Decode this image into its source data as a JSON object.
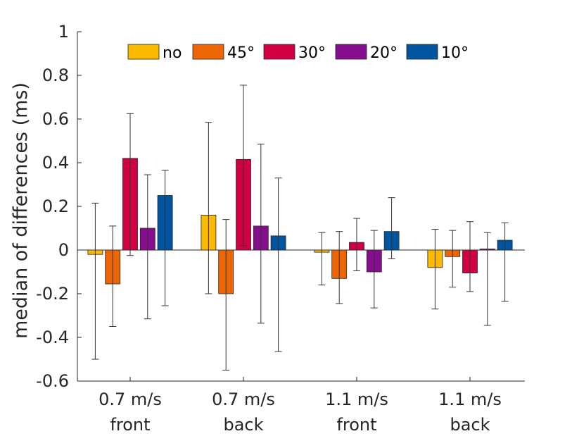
{
  "chart_data": {
    "type": "bar",
    "title": "",
    "xlabel": "",
    "ylabel": "median of differences (ms)",
    "ylim": [
      -0.6,
      1
    ],
    "yticks": [
      -0.6,
      -0.4,
      -0.2,
      0,
      0.2,
      0.4,
      0.6,
      0.8,
      1
    ],
    "ytick_labels": [
      "-0.6",
      "-0.4",
      "-0.2",
      "0",
      "0.2",
      "0.4",
      "0.6",
      "0.8",
      "1"
    ],
    "categories": [
      {
        "line1": "0.7 m/s",
        "line2": "front"
      },
      {
        "line1": "0.7 m/s",
        "line2": "back"
      },
      {
        "line1": "1.1 m/s",
        "line2": "front"
      },
      {
        "line1": "1.1 m/s",
        "line2": "back"
      }
    ],
    "legend_position": "top",
    "series": [
      {
        "name": "no",
        "color": "#FBB900",
        "values": [
          -0.02,
          0.16,
          -0.01,
          -0.08
        ],
        "err_low": [
          -0.5,
          -0.2,
          -0.16,
          -0.27
        ],
        "err_high": [
          0.215,
          0.585,
          0.08,
          0.095
        ]
      },
      {
        "name": "45°",
        "color": "#EC6605",
        "values": [
          -0.155,
          -0.2,
          -0.13,
          -0.03
        ],
        "err_low": [
          -0.35,
          -0.55,
          -0.245,
          -0.17
        ],
        "err_high": [
          0.11,
          0.14,
          0.085,
          0.09
        ]
      },
      {
        "name": "30°",
        "color": "#D10042",
        "values": [
          0.42,
          0.415,
          0.035,
          -0.105
        ],
        "err_low": [
          -0.025,
          0.02,
          -0.095,
          -0.19
        ],
        "err_high": [
          0.625,
          0.755,
          0.145,
          0.13
        ]
      },
      {
        "name": "20°",
        "color": "#860D8E",
        "values": [
          0.1,
          0.11,
          -0.1,
          0.005
        ],
        "err_low": [
          -0.315,
          -0.335,
          -0.265,
          -0.345
        ],
        "err_high": [
          0.345,
          0.485,
          0.09,
          0.08
        ]
      },
      {
        "name": "10°",
        "color": "#0054A0",
        "values": [
          0.25,
          0.065,
          0.085,
          0.045
        ],
        "err_low": [
          -0.255,
          -0.465,
          -0.04,
          -0.235
        ],
        "err_high": [
          0.365,
          0.33,
          0.24,
          0.125
        ]
      }
    ]
  }
}
